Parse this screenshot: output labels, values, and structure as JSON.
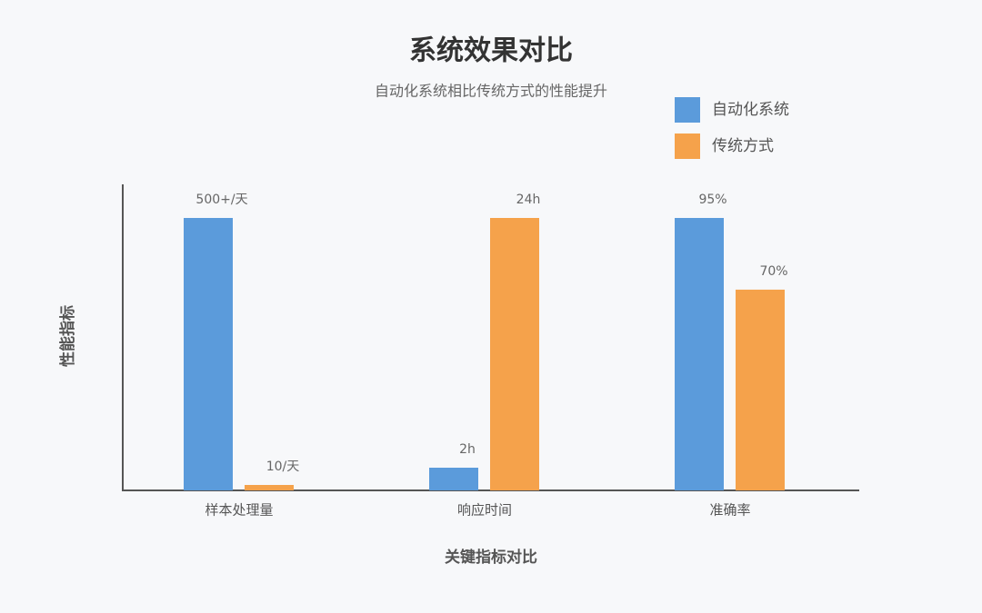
{
  "chart_data": {
    "type": "bar",
    "title": "系统效果对比",
    "subtitle": "自动化系统相比传统方式的性能提升",
    "x_label": "关键指标对比",
    "y_label": "性能指标",
    "categories": [
      "样本处理量",
      "响应时间",
      "准确率"
    ],
    "series": [
      {
        "name": "自动化系统",
        "color": "#5b9bdb",
        "values": [
          500,
          2,
          95
        ],
        "value_labels": [
          "500+/天",
          "2h",
          "95%"
        ]
      },
      {
        "name": "传统方式",
        "color": "#f5a24b",
        "values": [
          10,
          24,
          70
        ],
        "value_labels": [
          "10/天",
          "24h",
          "70%"
        ]
      }
    ],
    "legend": "top-right"
  }
}
